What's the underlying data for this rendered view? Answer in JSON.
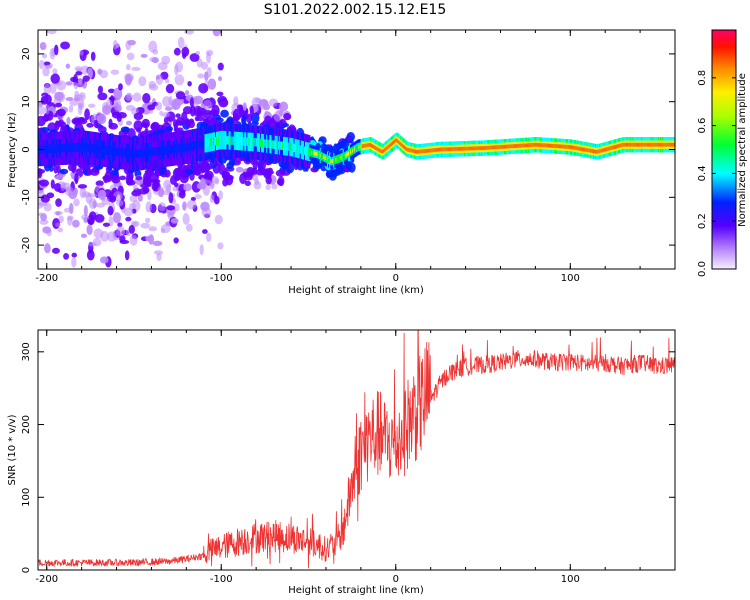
{
  "title": "S101.2022.002.15.12.E15",
  "chart_data": [
    {
      "type": "heatmap",
      "xlabel": "Height of straight line (km)",
      "ylabel": "Frequency (Hz)",
      "xlim": [
        -205,
        160
      ],
      "ylim": [
        -25,
        25
      ],
      "xticks": [
        -200,
        -100,
        0,
        100
      ],
      "xticklabels": [
        "-200",
        "-100",
        "0",
        "100"
      ],
      "yticks": [
        -20,
        -10,
        0,
        10,
        20
      ],
      "yticklabels": [
        "-20",
        "-10",
        "0",
        "10",
        "20"
      ],
      "colorbar": {
        "label": "Normalized spectral amplitude",
        "range": [
          0,
          1
        ],
        "ticks": [
          0.0,
          0.2,
          0.4,
          0.6,
          0.8
        ],
        "ticklabels": [
          "0.0",
          "0.2",
          "0.4",
          "0.6",
          "0.8"
        ],
        "colormap": "rainbow",
        "colors": [
          "#f8f8ff",
          "#9966ff",
          "#5500ff",
          "#0000ff",
          "#00ffff",
          "#00ff00",
          "#ffff00",
          "#ff8800",
          "#ff0000",
          "#ff0066"
        ]
      },
      "ridge": {
        "description_points_x": [
          -205,
          -180,
          -150,
          -120,
          -100,
          -80,
          -60,
          -45,
          -37,
          -30,
          -22,
          -15,
          -8,
          0,
          6,
          12,
          25,
          50,
          80,
          100,
          115,
          130,
          160
        ],
        "frequency_hz": [
          0,
          0.5,
          -1,
          0.5,
          2,
          1.5,
          0.5,
          -1,
          -2.5,
          -1.5,
          0.5,
          1,
          -0.5,
          2,
          0,
          -0.5,
          0,
          0.3,
          1,
          0.5,
          -0.5,
          1,
          1
        ]
      }
    },
    {
      "type": "line",
      "xlabel": "Height of straight line (km)",
      "ylabel": "SNR (10 * v/v)",
      "xlim": [
        -205,
        160
      ],
      "ylim": [
        0,
        330
      ],
      "xticks": [
        -200,
        -100,
        0,
        100
      ],
      "xticklabels": [
        "-200",
        "-100",
        "0",
        "100"
      ],
      "yticks": [
        0,
        100,
        200,
        300
      ],
      "yticklabels": [
        "0",
        "100",
        "200",
        "300"
      ],
      "color": "#ee3333",
      "series": [
        {
          "x": [
            -205,
            -180,
            -150,
            -130,
            -120,
            -110,
            -100,
            -90,
            -80,
            -70,
            -60,
            -50,
            -40,
            -35,
            -30,
            -25,
            -20,
            -15,
            -10,
            -5,
            0,
            5,
            10,
            15,
            20,
            25,
            30,
            40,
            50,
            60,
            70,
            80,
            90,
            100,
            110,
            120,
            130,
            140,
            150,
            160
          ],
          "values": [
            10,
            10,
            10,
            12,
            15,
            20,
            28,
            35,
            40,
            42,
            40,
            35,
            25,
            30,
            50,
            110,
            150,
            170,
            175,
            165,
            160,
            180,
            200,
            215,
            235,
            255,
            270,
            280,
            282,
            285,
            290,
            290,
            285,
            287,
            283,
            285,
            280,
            285,
            280,
            282
          ]
        }
      ]
    }
  ]
}
